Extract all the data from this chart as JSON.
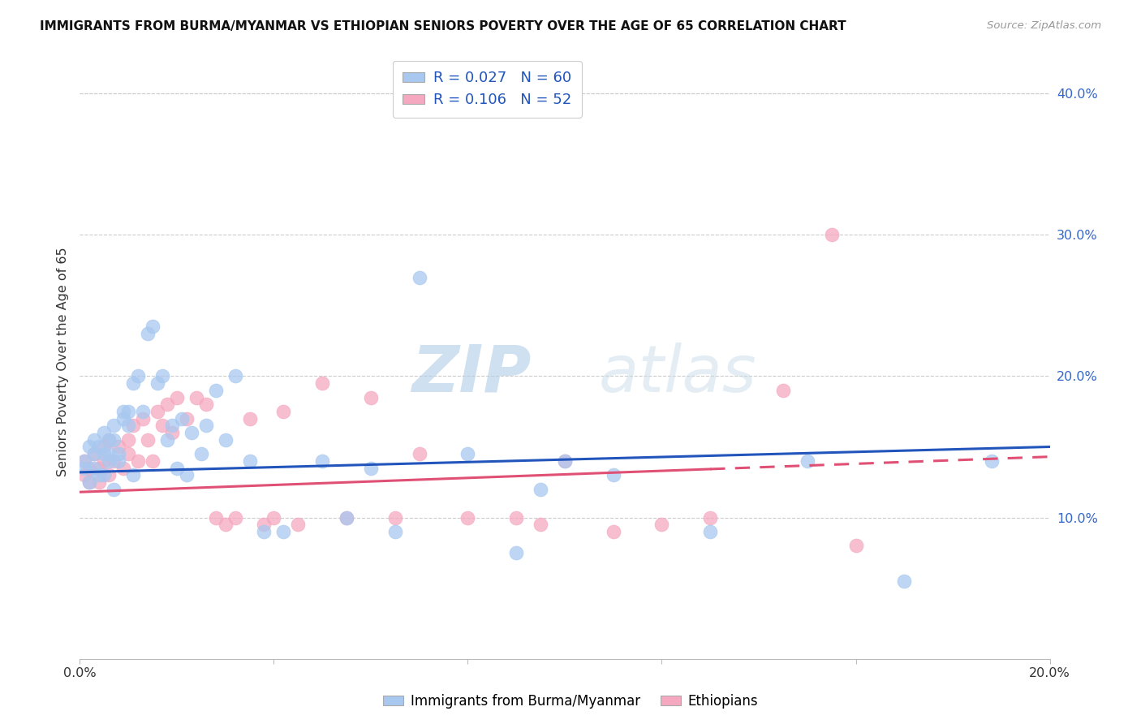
{
  "title": "IMMIGRANTS FROM BURMA/MYANMAR VS ETHIOPIAN SENIORS POVERTY OVER THE AGE OF 65 CORRELATION CHART",
  "source": "Source: ZipAtlas.com",
  "ylabel": "Seniors Poverty Over the Age of 65",
  "xlim": [
    0.0,
    0.2
  ],
  "ylim": [
    0.0,
    0.42
  ],
  "yticks": [
    0.1,
    0.2,
    0.3,
    0.4
  ],
  "ytick_labels": [
    "10.0%",
    "20.0%",
    "30.0%",
    "40.0%"
  ],
  "legend1_label": "Immigrants from Burma/Myanmar",
  "legend2_label": "Ethiopians",
  "R1": 0.027,
  "N1": 60,
  "R2": 0.106,
  "N2": 52,
  "color1": "#a8c8f0",
  "color2": "#f5a8c0",
  "line1_color": "#2255bb",
  "line2_color": "#e05075",
  "watermark_zip": "ZIP",
  "watermark_atlas": "atlas",
  "blue_scatter_x": [
    0.001,
    0.001,
    0.002,
    0.002,
    0.003,
    0.003,
    0.003,
    0.004,
    0.004,
    0.005,
    0.005,
    0.005,
    0.006,
    0.006,
    0.006,
    0.007,
    0.007,
    0.007,
    0.008,
    0.008,
    0.009,
    0.009,
    0.01,
    0.01,
    0.011,
    0.011,
    0.012,
    0.013,
    0.014,
    0.015,
    0.016,
    0.017,
    0.018,
    0.019,
    0.02,
    0.021,
    0.022,
    0.023,
    0.025,
    0.026,
    0.028,
    0.03,
    0.032,
    0.035,
    0.038,
    0.042,
    0.05,
    0.055,
    0.06,
    0.065,
    0.07,
    0.08,
    0.09,
    0.095,
    0.1,
    0.11,
    0.13,
    0.15,
    0.17,
    0.188
  ],
  "blue_scatter_y": [
    0.14,
    0.135,
    0.15,
    0.125,
    0.155,
    0.135,
    0.145,
    0.13,
    0.15,
    0.145,
    0.13,
    0.16,
    0.145,
    0.155,
    0.14,
    0.12,
    0.165,
    0.155,
    0.14,
    0.145,
    0.175,
    0.17,
    0.165,
    0.175,
    0.195,
    0.13,
    0.2,
    0.175,
    0.23,
    0.235,
    0.195,
    0.2,
    0.155,
    0.165,
    0.135,
    0.17,
    0.13,
    0.16,
    0.145,
    0.165,
    0.19,
    0.155,
    0.2,
    0.14,
    0.09,
    0.09,
    0.14,
    0.1,
    0.135,
    0.09,
    0.27,
    0.145,
    0.075,
    0.12,
    0.14,
    0.13,
    0.09,
    0.14,
    0.055,
    0.14
  ],
  "pink_scatter_x": [
    0.001,
    0.001,
    0.002,
    0.002,
    0.003,
    0.004,
    0.004,
    0.005,
    0.005,
    0.006,
    0.006,
    0.007,
    0.008,
    0.009,
    0.01,
    0.01,
    0.011,
    0.012,
    0.013,
    0.014,
    0.015,
    0.016,
    0.017,
    0.018,
    0.019,
    0.02,
    0.022,
    0.024,
    0.026,
    0.028,
    0.03,
    0.032,
    0.035,
    0.038,
    0.04,
    0.042,
    0.045,
    0.05,
    0.055,
    0.06,
    0.065,
    0.07,
    0.08,
    0.09,
    0.095,
    0.1,
    0.11,
    0.12,
    0.13,
    0.145,
    0.155,
    0.16
  ],
  "pink_scatter_y": [
    0.14,
    0.13,
    0.135,
    0.125,
    0.145,
    0.135,
    0.125,
    0.15,
    0.14,
    0.13,
    0.155,
    0.14,
    0.15,
    0.135,
    0.155,
    0.145,
    0.165,
    0.14,
    0.17,
    0.155,
    0.14,
    0.175,
    0.165,
    0.18,
    0.16,
    0.185,
    0.17,
    0.185,
    0.18,
    0.1,
    0.095,
    0.1,
    0.17,
    0.095,
    0.1,
    0.175,
    0.095,
    0.195,
    0.1,
    0.185,
    0.1,
    0.145,
    0.1,
    0.1,
    0.095,
    0.14,
    0.09,
    0.095,
    0.1,
    0.19,
    0.3,
    0.08
  ],
  "line1_x0": 0.0,
  "line1_y0": 0.132,
  "line1_x1": 0.2,
  "line1_y1": 0.15,
  "line2_x0": 0.0,
  "line2_y0": 0.118,
  "line2_x1": 0.2,
  "line2_y1": 0.143,
  "line2_solid_end": 0.13
}
